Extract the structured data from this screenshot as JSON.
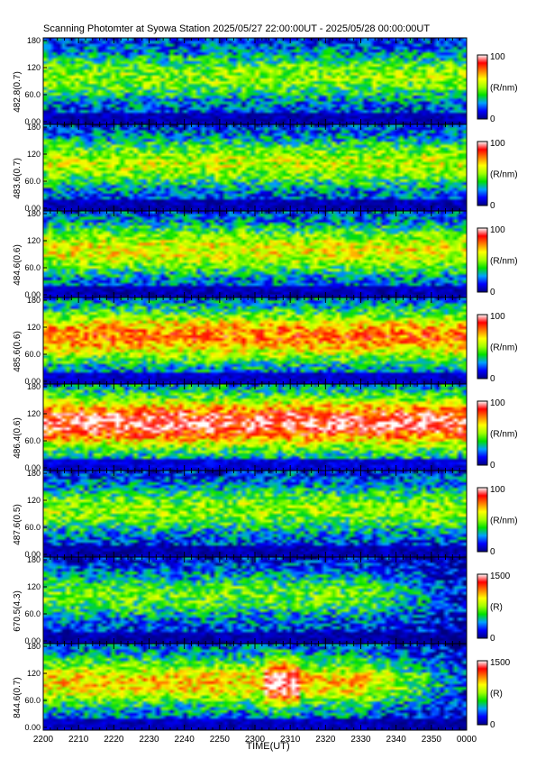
{
  "title": "Scanning Photomter at Syowa Station  2025/05/27 22:00:00UT - 2025/05/28 00:00:00UT",
  "chart_data": {
    "type": "heatmap",
    "x_axis": {
      "label": "TIME(UT)",
      "range_minutes": [
        0,
        120
      ],
      "tick_labels": [
        "2200",
        "2210",
        "2220",
        "2230",
        "2240",
        "2250",
        "2300",
        "2310",
        "2320",
        "2330",
        "2340",
        "2350",
        "0000"
      ]
    },
    "y_tick_labels": [
      "0.00",
      "60.0",
      "120",
      "180"
    ],
    "y_range": [
      0,
      180
    ],
    "colorscale": [
      "#000080",
      "#0000ff",
      "#00a0ff",
      "#00e000",
      "#a0ff00",
      "#ffff00",
      "#ff8000",
      "#ff0000",
      "#ffffff"
    ],
    "panels": [
      {
        "label": "482.8(0.7)",
        "unit": "(R/nm)",
        "scale_max": "100",
        "scale_min": "0",
        "mean_level": 0.45
      },
      {
        "label": "483.6(0.7)",
        "unit": "(R/nm)",
        "scale_max": "100",
        "scale_min": "0",
        "mean_level": 0.5
      },
      {
        "label": "484.6(0.6)",
        "unit": "(R/nm)",
        "scale_max": "100",
        "scale_min": "0",
        "mean_level": 0.55
      },
      {
        "label": "485.6(0.6)",
        "unit": "(R/nm)",
        "scale_max": "100",
        "scale_min": "0",
        "mean_level": 0.7
      },
      {
        "label": "486.4(0.6)",
        "unit": "(R/nm)",
        "scale_max": "100",
        "scale_min": "0",
        "mean_level": 0.85
      },
      {
        "label": "487.6(0.5)",
        "unit": "(R/nm)",
        "scale_max": "100",
        "scale_min": "0",
        "mean_level": 0.45
      },
      {
        "label": "670.5(4.3)",
        "unit": "(R)",
        "scale_max": "1500",
        "scale_min": "0",
        "mean_level": 0.4
      },
      {
        "label": "844.6(0.7)",
        "unit": "(R)",
        "scale_max": "1500",
        "scale_min": "0",
        "mean_level": 0.6
      }
    ]
  }
}
